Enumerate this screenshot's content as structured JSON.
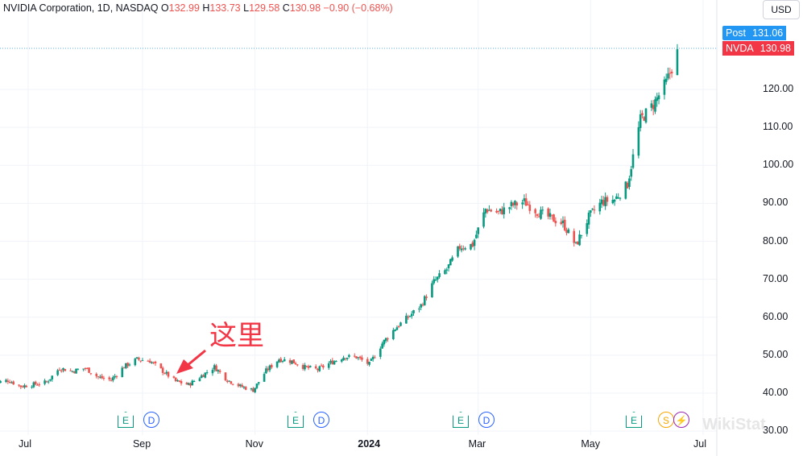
{
  "legend": {
    "symbol": "NVIDIA Corporation, 1D, NASDAQ",
    "o_label": "O",
    "o_value": "132.99",
    "h_label": "H",
    "h_value": "133.73",
    "l_label": "L",
    "l_value": "129.58",
    "c_label": "C",
    "c_value": "130.98",
    "change": "−0.90 (−0.68%)"
  },
  "currency": "USD",
  "price_tags": {
    "post": {
      "label": "Post",
      "value": "131.06",
      "color": "#2196f3"
    },
    "last": {
      "label": "NVDA",
      "value": "130.98",
      "color": "#f23645"
    }
  },
  "annotation": "这里",
  "watermark": "WikiStat",
  "events": [
    {
      "type": "E",
      "name": "earnings"
    },
    {
      "type": "D",
      "name": "dividend"
    },
    {
      "type": "E",
      "name": "earnings"
    },
    {
      "type": "D",
      "name": "dividend"
    },
    {
      "type": "E",
      "name": "earnings"
    },
    {
      "type": "D",
      "name": "dividend"
    },
    {
      "type": "E",
      "name": "earnings"
    },
    {
      "type": "S",
      "name": "split"
    },
    {
      "type": "",
      "name": "lightning"
    }
  ],
  "colors": {
    "up": "#089981",
    "down": "#ef5350",
    "grid": "#f0f3fa",
    "annotation": "#f23645"
  },
  "chart_data": {
    "type": "candlestick",
    "title": "NVIDIA Corporation, 1D, NASDAQ",
    "ylim": [
      30,
      135
    ],
    "y_ticks": [
      "30.00",
      "40.00",
      "50.00",
      "60.00",
      "70.00",
      "80.00",
      "90.00",
      "100.00",
      "110.00",
      "120.00"
    ],
    "x_ticks": [
      "Jul",
      "Sep",
      "Nov",
      "2024",
      "Mar",
      "May",
      "Jul"
    ],
    "x_tick_dates": [
      "2023-07-01",
      "2023-09-01",
      "2023-11-01",
      "2024-01-01",
      "2024-03-01",
      "2024-05-01",
      "2024-07-01"
    ],
    "x_range": [
      "2023-06-12",
      "2024-07-10"
    ],
    "series": [
      {
        "date": "2023-06-13",
        "value": 42.6
      },
      {
        "date": "2023-06-20",
        "value": 43.4
      },
      {
        "date": "2023-06-27",
        "value": 41.8
      },
      {
        "date": "2023-07-04",
        "value": 42.3
      },
      {
        "date": "2023-07-11",
        "value": 42.9
      },
      {
        "date": "2023-07-18",
        "value": 46.6
      },
      {
        "date": "2023-07-25",
        "value": 45.8
      },
      {
        "date": "2023-08-01",
        "value": 46.6
      },
      {
        "date": "2023-08-08",
        "value": 44.2
      },
      {
        "date": "2023-08-15",
        "value": 43.5
      },
      {
        "date": "2023-08-22",
        "value": 47.0
      },
      {
        "date": "2023-08-29",
        "value": 48.9
      },
      {
        "date": "2023-09-05",
        "value": 48.5
      },
      {
        "date": "2023-09-12",
        "value": 45.8
      },
      {
        "date": "2023-09-19",
        "value": 43.1
      },
      {
        "date": "2023-09-26",
        "value": 42.2
      },
      {
        "date": "2023-10-03",
        "value": 44.6
      },
      {
        "date": "2023-10-10",
        "value": 46.9
      },
      {
        "date": "2023-10-17",
        "value": 43.5
      },
      {
        "date": "2023-10-24",
        "value": 41.8
      },
      {
        "date": "2023-10-31",
        "value": 40.8
      },
      {
        "date": "2023-11-07",
        "value": 45.9
      },
      {
        "date": "2023-11-14",
        "value": 49.0
      },
      {
        "date": "2023-11-21",
        "value": 48.4
      },
      {
        "date": "2023-11-28",
        "value": 46.8
      },
      {
        "date": "2023-12-05",
        "value": 46.2
      },
      {
        "date": "2023-12-12",
        "value": 48.0
      },
      {
        "date": "2023-12-19",
        "value": 49.6
      },
      {
        "date": "2023-12-26",
        "value": 49.5
      },
      {
        "date": "2024-01-02",
        "value": 47.6
      },
      {
        "date": "2024-01-09",
        "value": 53.1
      },
      {
        "date": "2024-01-16",
        "value": 57.1
      },
      {
        "date": "2024-01-23",
        "value": 60.0
      },
      {
        "date": "2024-01-30",
        "value": 63.1
      },
      {
        "date": "2024-02-06",
        "value": 69.3
      },
      {
        "date": "2024-02-13",
        "value": 72.6
      },
      {
        "date": "2024-02-20",
        "value": 78.5
      },
      {
        "date": "2024-02-27",
        "value": 79.1
      },
      {
        "date": "2024-03-05",
        "value": 88.5
      },
      {
        "date": "2024-03-12",
        "value": 87.5
      },
      {
        "date": "2024-03-19",
        "value": 89.4
      },
      {
        "date": "2024-03-26",
        "value": 90.4
      },
      {
        "date": "2024-04-02",
        "value": 87.8
      },
      {
        "date": "2024-04-09",
        "value": 86.2
      },
      {
        "date": "2024-04-16",
        "value": 84.7
      },
      {
        "date": "2024-04-23",
        "value": 78.9
      },
      {
        "date": "2024-04-30",
        "value": 86.4
      },
      {
        "date": "2024-05-07",
        "value": 90.4
      },
      {
        "date": "2024-05-14",
        "value": 91.0
      },
      {
        "date": "2024-05-21",
        "value": 95.0
      },
      {
        "date": "2024-05-28",
        "value": 112.0
      },
      {
        "date": "2024-06-04",
        "value": 116.0
      },
      {
        "date": "2024-06-11",
        "value": 121.8
      },
      {
        "date": "2024-06-18",
        "value": 130.98
      }
    ]
  }
}
